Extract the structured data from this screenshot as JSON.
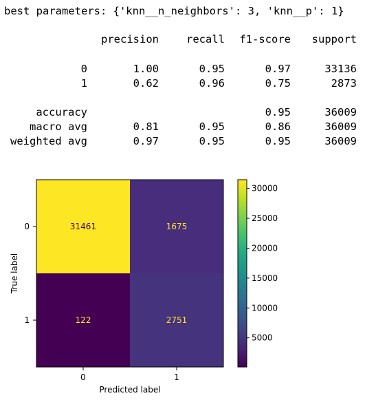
{
  "output": {
    "best_params_line": "best parameters: {'knn__n_neighbors': 3, 'knn__p': 1}",
    "report": {
      "headers": [
        "precision",
        "recall",
        "f1-score",
        "support"
      ],
      "rows": [
        {
          "label": "0",
          "precision": "1.00",
          "recall": "0.95",
          "f1": "0.97",
          "support": "33136"
        },
        {
          "label": "1",
          "precision": "0.62",
          "recall": "0.96",
          "f1": "0.75",
          "support": "2873"
        },
        {
          "label": "accuracy",
          "precision": "",
          "recall": "",
          "f1": "0.95",
          "support": "36009"
        },
        {
          "label": "macro avg",
          "precision": "0.81",
          "recall": "0.95",
          "f1": "0.86",
          "support": "36009"
        },
        {
          "label": "weighted avg",
          "precision": "0.97",
          "recall": "0.95",
          "f1": "0.95",
          "support": "36009"
        }
      ]
    }
  },
  "chart_data": {
    "type": "heatmap",
    "title": "",
    "xlabel": "Predicted label",
    "ylabel": "True label",
    "x_ticks": [
      "0",
      "1"
    ],
    "y_ticks": [
      "0",
      "1"
    ],
    "matrix": [
      [
        31461,
        1675
      ],
      [
        122,
        2751
      ]
    ],
    "cell_labels": [
      [
        "31461",
        "1675"
      ],
      [
        "122",
        "2751"
      ]
    ],
    "colormap": "viridis",
    "cell_colors": [
      [
        "#fde725",
        "#472d7b"
      ],
      [
        "#440154",
        "#46337e"
      ]
    ],
    "cell_text_colors": [
      [
        "#440154",
        "#fde725"
      ],
      [
        "#fde725",
        "#fde725"
      ]
    ],
    "colorbar": {
      "min": 122,
      "max": 31461,
      "ticks": [
        "5000",
        "10000",
        "15000",
        "20000",
        "25000",
        "30000"
      ],
      "tick_values": [
        5000,
        10000,
        15000,
        20000,
        25000,
        30000
      ]
    }
  }
}
